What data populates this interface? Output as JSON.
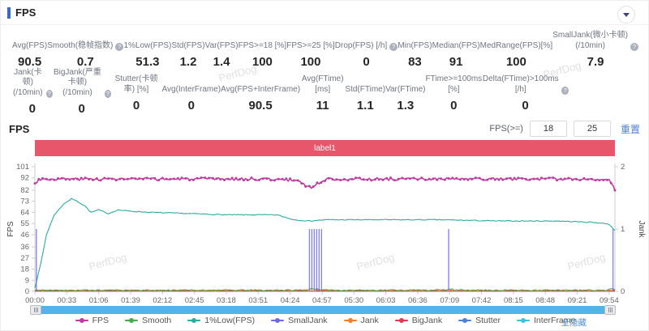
{
  "header": {
    "title": "FPS"
  },
  "stats_row1": [
    {
      "label": "Avg(FPS)",
      "value": "90.5"
    },
    {
      "label": "Smooth(稳帧指数)",
      "value": "0.7",
      "help": true
    },
    {
      "label": "1%Low(FPS)",
      "value": "51.3"
    },
    {
      "label": "Std(FPS)",
      "value": "1.2"
    },
    {
      "label": "Var(FPS)",
      "value": "1.4"
    },
    {
      "label": "FPS>=18 [%]",
      "value": "100"
    },
    {
      "label": "FPS>=25 [%]",
      "value": "100"
    },
    {
      "label": "Drop(FPS) [/h]",
      "value": "0",
      "help": true
    },
    {
      "label": "Min(FPS)",
      "value": "83"
    },
    {
      "label": "Median(FPS)",
      "value": "91"
    },
    {
      "label": "MedRange(FPS)[%]",
      "value": "100"
    },
    {
      "label": "SmallJank(微小卡顿)\n(/10min)",
      "value": "7.9",
      "help": true
    }
  ],
  "stats_row2": [
    {
      "label": "Jank(卡顿)\n(/10min)",
      "value": "0",
      "help": true
    },
    {
      "label": "BigJank(严重卡顿)\n(/10min)",
      "value": "0",
      "help": true
    },
    {
      "label": "Stutter(卡顿率) [%]",
      "value": "0"
    },
    {
      "label": "Avg(InterFrame)",
      "value": "0"
    },
    {
      "label": "Avg(FPS+InterFrame)",
      "value": "90.5"
    },
    {
      "label": "Avg(FTime) [ms]",
      "value": "11"
    },
    {
      "label": "Std(FTime)",
      "value": "1.1"
    },
    {
      "label": "Var(FTime)",
      "value": "1.3"
    },
    {
      "label": "FTime>=100ms [%]",
      "value": "0"
    },
    {
      "label": "Delta(FTime)>100ms [/h]",
      "value": "0",
      "help": true
    }
  ],
  "section": {
    "title": "FPS",
    "filter_label": "FPS(>=)",
    "threshold1": "18",
    "threshold2": "25",
    "reset_label": "重置"
  },
  "banner": {
    "text": "label1",
    "color": "#e8566c"
  },
  "watermark": "PerfDog",
  "chart_data": {
    "type": "line",
    "title": "",
    "x_axis": {
      "unit": "mm:ss",
      "max_seconds": 600,
      "tick_interval_seconds": 33,
      "tick_labels": [
        "00:00",
        "00:33",
        "01:06",
        "01:39",
        "02:12",
        "02:45",
        "03:18",
        "03:51",
        "04:24",
        "04:57",
        "05:30",
        "06:03",
        "06:36",
        "07:09",
        "07:42",
        "08:15",
        "08:48",
        "09:21",
        "09:54"
      ]
    },
    "y_left": {
      "label": "FPS",
      "ticks": [
        0,
        9,
        18,
        27,
        36,
        46,
        55,
        64,
        73,
        82,
        92,
        101
      ],
      "max": 101
    },
    "y_right": {
      "label": "Jank",
      "ticks": [
        0,
        1,
        2
      ],
      "max": 2
    },
    "grid": false,
    "legend_position": "bottom",
    "series": [
      {
        "name": "FPS",
        "color": "#bf3aa2",
        "axis": "left",
        "style": "line-markers",
        "noise": 1.1,
        "seed": 3,
        "z": 8,
        "keypoints": [
          [
            0,
            87
          ],
          [
            4,
            91
          ],
          [
            240,
            91
          ],
          [
            272,
            90
          ],
          [
            280,
            86
          ],
          [
            286,
            84
          ],
          [
            292,
            87
          ],
          [
            298,
            90
          ],
          [
            304,
            91
          ],
          [
            590,
            91
          ],
          [
            594,
            90
          ],
          [
            597,
            87
          ],
          [
            600,
            82
          ]
        ]
      },
      {
        "name": "Smooth",
        "color": "#44a94f",
        "axis": "left",
        "style": "line",
        "noise": 0.55,
        "seed": 11,
        "z": 6,
        "keypoints": [
          [
            0,
            0.8
          ],
          [
            280,
            0.9
          ],
          [
            288,
            2.4
          ],
          [
            296,
            0.9
          ],
          [
            426,
            1.0
          ],
          [
            430,
            2.0
          ],
          [
            434,
            0.9
          ],
          [
            560,
            0.8
          ],
          [
            592,
            0.9
          ],
          [
            596,
            2.2
          ],
          [
            600,
            1.0
          ]
        ]
      },
      {
        "name": "1%Low(FPS)",
        "color": "#2cab9f",
        "axis": "left",
        "style": "line",
        "noise": 0.35,
        "seed": 7,
        "z": 5,
        "keypoints": [
          [
            0,
            3
          ],
          [
            6,
            22
          ],
          [
            12,
            46
          ],
          [
            20,
            62
          ],
          [
            30,
            71
          ],
          [
            38,
            75
          ],
          [
            44,
            73
          ],
          [
            52,
            69
          ],
          [
            58,
            64
          ],
          [
            66,
            66
          ],
          [
            76,
            63
          ],
          [
            86,
            66
          ],
          [
            98,
            65
          ],
          [
            120,
            64
          ],
          [
            160,
            63
          ],
          [
            200,
            62
          ],
          [
            250,
            62
          ],
          [
            268,
            58
          ],
          [
            284,
            57
          ],
          [
            300,
            58
          ],
          [
            360,
            58
          ],
          [
            420,
            58
          ],
          [
            480,
            57
          ],
          [
            540,
            57
          ],
          [
            575,
            56
          ],
          [
            590,
            55
          ],
          [
            595,
            54
          ],
          [
            598,
            51
          ],
          [
            600,
            49
          ]
        ]
      },
      {
        "name": "SmallJank",
        "color": "#6b6ae0",
        "axis": "right",
        "style": "spikes",
        "z": 7,
        "spike_times": [
          1.5,
          284,
          286.5,
          289,
          291.5,
          294,
          296.5,
          428,
          598
        ],
        "spike_value": 1
      },
      {
        "name": "Jank",
        "color": "#ef7f2b",
        "axis": "right",
        "style": "line",
        "noise": 0.012,
        "seed": 5,
        "z": 4,
        "keypoints": [
          [
            0,
            0.015
          ],
          [
            600,
            0.015
          ]
        ]
      },
      {
        "name": "BigJank",
        "color": "#e03a52",
        "axis": "right",
        "style": "line",
        "noise": 0,
        "seed": 1,
        "z": 3,
        "keypoints": [
          [
            0,
            0.004
          ],
          [
            600,
            0.004
          ]
        ]
      },
      {
        "name": "Stutter",
        "color": "#4d7fd5",
        "axis": "right",
        "style": "line",
        "noise": 0,
        "seed": 1,
        "z": 2,
        "keypoints": [
          [
            0,
            0.004
          ],
          [
            600,
            0.004
          ]
        ]
      },
      {
        "name": "InterFrame",
        "color": "#3bc2dd",
        "axis": "right",
        "style": "line",
        "noise": 0,
        "seed": 1,
        "z": 1,
        "keypoints": [
          [
            0,
            0.006
          ],
          [
            600,
            0.006
          ]
        ]
      }
    ]
  },
  "legend": {
    "hide_all_label": "全隐藏"
  }
}
